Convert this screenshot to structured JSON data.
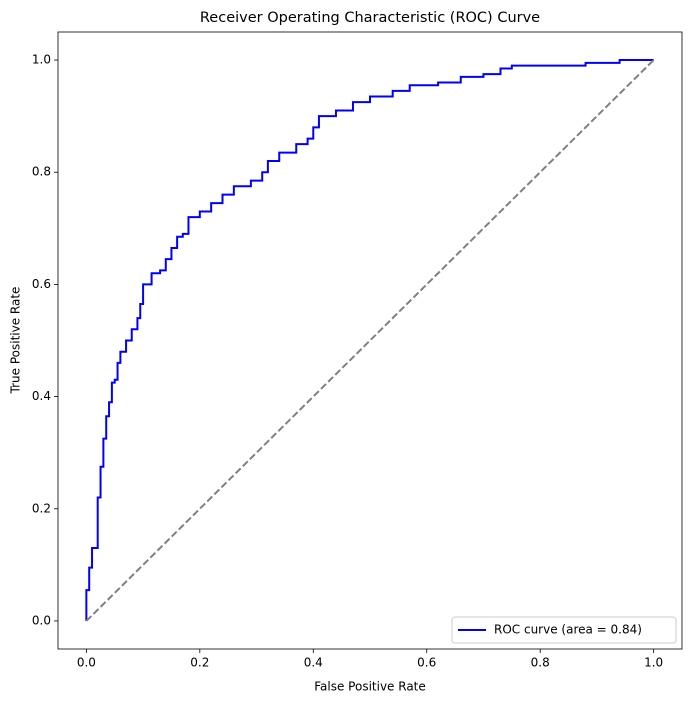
{
  "chart_data": {
    "type": "line",
    "title": "Receiver Operating Characteristic (ROC) Curve",
    "x_label": "False Positive Rate",
    "y_label": "True Positive Rate",
    "xlim": [
      -0.05,
      1.05
    ],
    "ylim": [
      -0.05,
      1.05
    ],
    "xticks": [
      {
        "value": 0,
        "label": "0.0"
      },
      0.2,
      0.4,
      0.6,
      0.8,
      {
        "value": 1,
        "label": "1.0"
      }
    ],
    "yticks": [
      {
        "value": 0,
        "label": "0.0"
      },
      0.2,
      0.4,
      0.6,
      0.8,
      {
        "value": 1,
        "label": "1.0"
      }
    ],
    "legend_position": "lower right",
    "series": [
      {
        "name": "ROC curve (area = 0.84)",
        "color": "#0000ff",
        "drawstyle": "steps-post",
        "x": [
          0,
          0,
          0.005,
          0.01,
          0.02,
          0.02,
          0.025,
          0.03,
          0.035,
          0.04,
          0.045,
          0.05,
          0.055,
          0.06,
          0.07,
          0.08,
          0.09,
          0.095,
          0.1,
          0.11,
          0.115,
          0.13,
          0.14,
          0.15,
          0.16,
          0.17,
          0.18,
          0.2,
          0.22,
          0.24,
          0.26,
          0.29,
          0.31,
          0.32,
          0.34,
          0.37,
          0.39,
          0.4,
          0.41,
          0.44,
          0.47,
          0.5,
          0.54,
          0.57,
          0.62,
          0.66,
          0.7,
          0.73,
          0.75,
          0.88,
          0.94,
          1.0
        ],
        "values": [
          0,
          0.055,
          0.095,
          0.13,
          0.14,
          0.22,
          0.275,
          0.325,
          0.365,
          0.39,
          0.425,
          0.43,
          0.46,
          0.48,
          0.5,
          0.52,
          0.54,
          0.565,
          0.6,
          0.6,
          0.62,
          0.625,
          0.645,
          0.665,
          0.685,
          0.69,
          0.72,
          0.73,
          0.745,
          0.76,
          0.775,
          0.785,
          0.8,
          0.82,
          0.835,
          0.85,
          0.86,
          0.88,
          0.9,
          0.91,
          0.925,
          0.935,
          0.945,
          0.955,
          0.96,
          0.97,
          0.975,
          0.985,
          0.99,
          0.995,
          1.0,
          1.0
        ]
      },
      {
        "color": "#808080",
        "dashed": true,
        "x": [
          0,
          1
        ],
        "values": [
          0,
          1
        ]
      }
    ]
  }
}
